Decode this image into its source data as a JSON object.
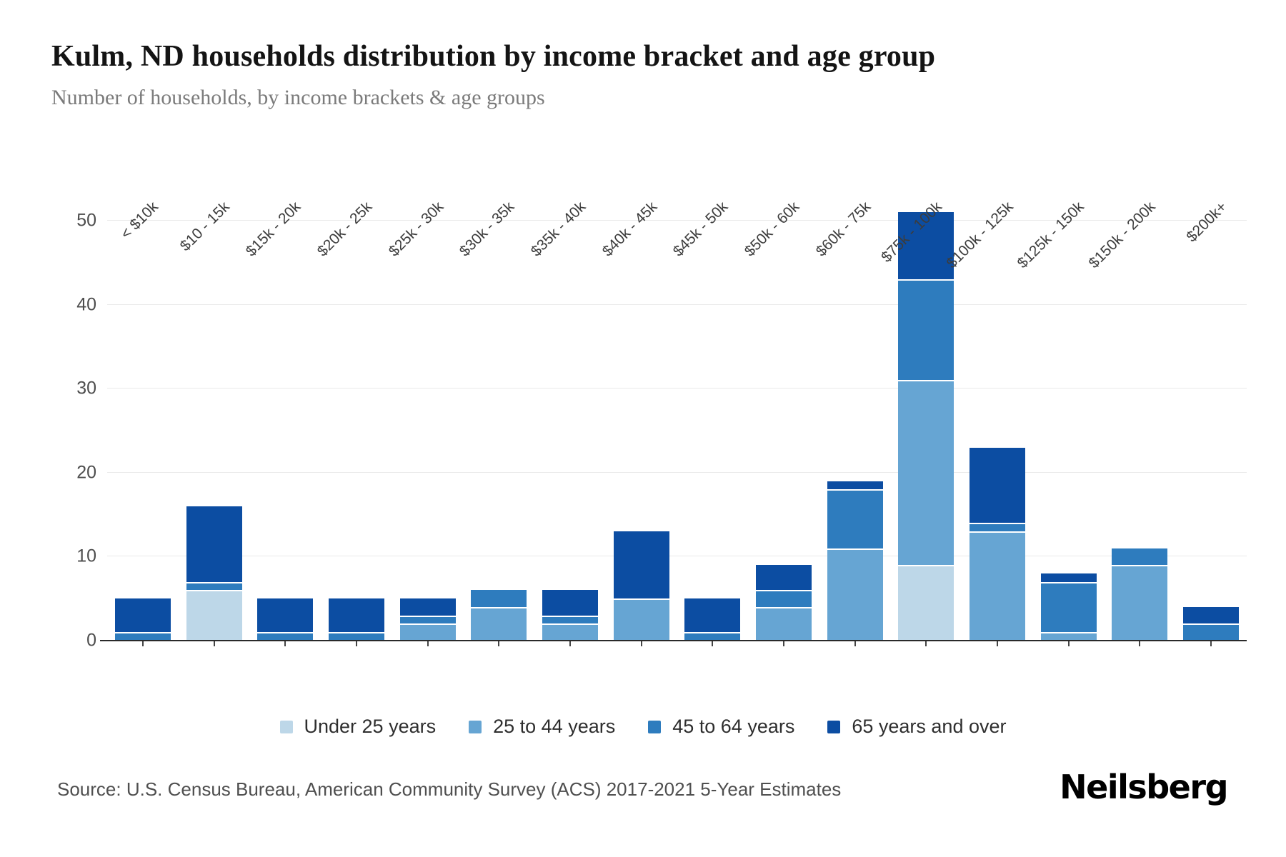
{
  "header": {
    "title": "Kulm, ND households distribution by income bracket and age group",
    "subtitle": "Number of households, by income brackets & age groups"
  },
  "chart_data": {
    "type": "bar",
    "stacked": true,
    "title": "Kulm, ND households distribution by income bracket and age group",
    "subtitle": "Number of households, by income brackets & age groups",
    "categories": [
      "< $10k",
      "$10 - 15k",
      "$15k - 20k",
      "$20k - 25k",
      "$25k - 30k",
      "$30k - 35k",
      "$35k - 40k",
      "$40k - 45k",
      "$45k - 50k",
      "$50k - 60k",
      "$60k - 75k",
      "$75k - 100k",
      "$100k - 125k",
      "$125k - 150k",
      "$150k - 200k",
      "$200k+"
    ],
    "series": [
      {
        "name": "Under 25 years",
        "color": "#bdd7e8",
        "values": [
          0,
          6,
          0,
          0,
          0,
          0,
          0,
          0,
          0,
          0,
          0,
          9,
          0,
          0,
          0,
          0
        ]
      },
      {
        "name": "25 to 44 years",
        "color": "#66a5d3",
        "values": [
          0,
          0,
          0,
          0,
          2,
          4,
          2,
          5,
          0,
          4,
          11,
          22,
          13,
          1,
          9,
          0
        ]
      },
      {
        "name": "45 to 64 years",
        "color": "#2e7cbe",
        "values": [
          1,
          1,
          1,
          1,
          1,
          2,
          1,
          0,
          1,
          2,
          7,
          12,
          1,
          6,
          2,
          2
        ]
      },
      {
        "name": "65 years and over",
        "color": "#0c4da2",
        "values": [
          4,
          9,
          4,
          4,
          2,
          0,
          3,
          8,
          4,
          3,
          1,
          8,
          9,
          1,
          0,
          2
        ]
      }
    ],
    "totals": [
      5,
      16,
      5,
      5,
      5,
      6,
      6,
      13,
      5,
      9,
      19,
      51,
      23,
      8,
      11,
      4
    ],
    "xlabel": "",
    "ylabel": "",
    "yticks": [
      0,
      10,
      20,
      30,
      40,
      50
    ],
    "ylim": [
      0,
      54
    ],
    "grid": true,
    "legend_position": "bottom"
  },
  "footer": {
    "source": "Source: U.S. Census Bureau, American Community Survey (ACS) 2017-2021 5-Year Estimates",
    "brand": "Neilsberg"
  }
}
